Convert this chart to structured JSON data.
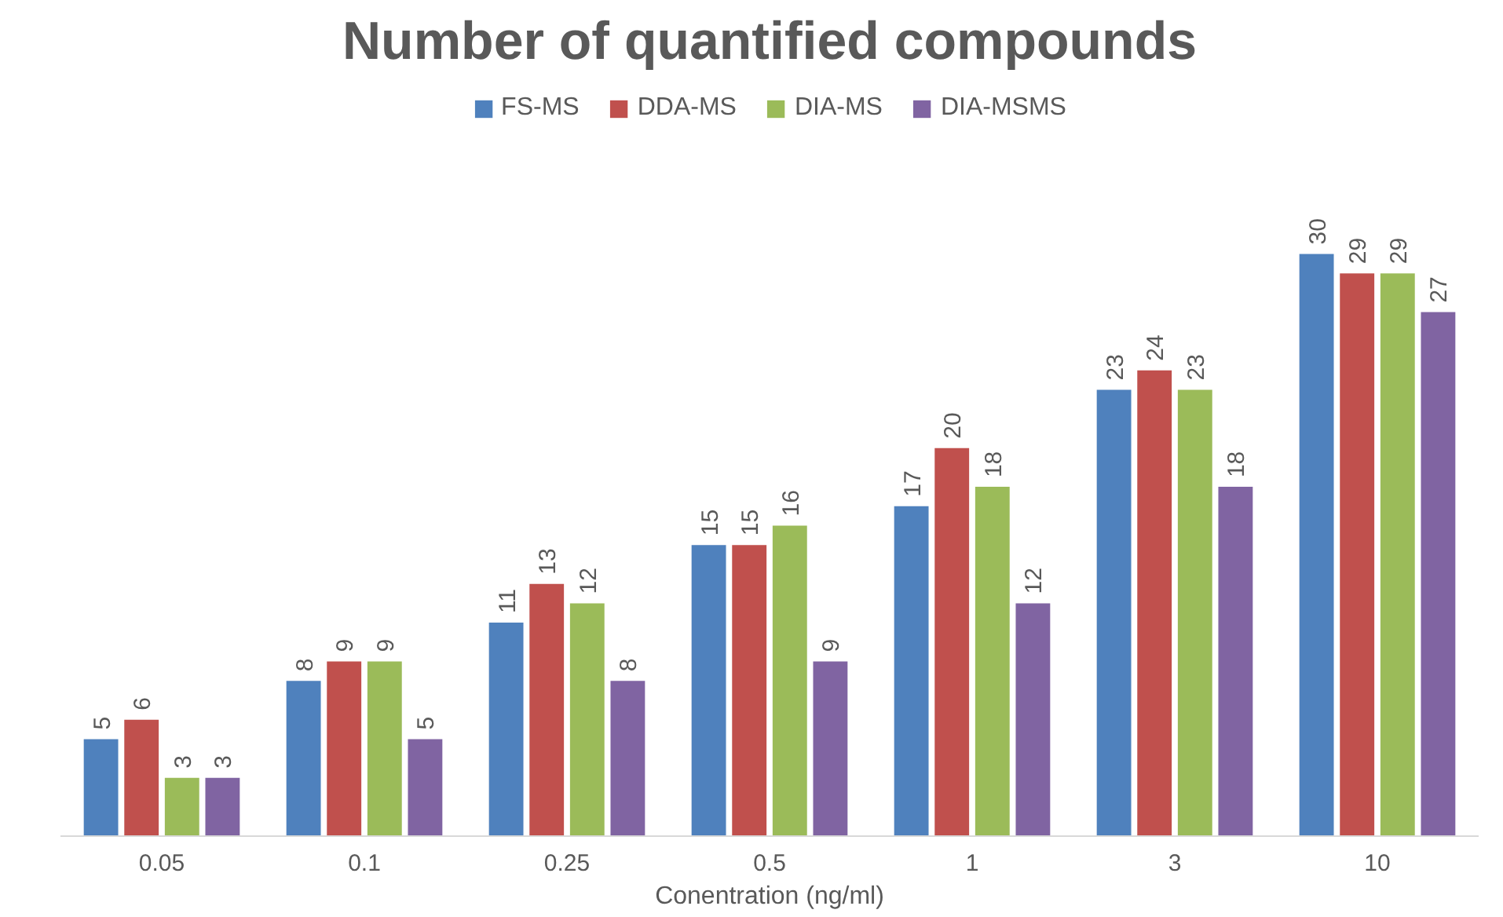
{
  "chart_data": {
    "type": "bar",
    "title": "Number of quantified compounds",
    "xlabel": "Conentration (ng/ml)",
    "categories": [
      "0.05",
      "0.1",
      "0.25",
      "0.5",
      "1",
      "3",
      "10"
    ],
    "series": [
      {
        "name": "FS-MS",
        "color": "#4f81bd",
        "values": [
          5,
          8,
          11,
          15,
          17,
          23,
          30
        ]
      },
      {
        "name": "DDA-MS",
        "color": "#c0504d",
        "values": [
          6,
          9,
          13,
          15,
          20,
          24,
          29
        ]
      },
      {
        "name": "DIA-MS",
        "color": "#9bbb59",
        "values": [
          3,
          9,
          12,
          16,
          18,
          23,
          29
        ]
      },
      {
        "name": "DIA-MSMS",
        "color": "#8064a2",
        "values": [
          3,
          5,
          8,
          9,
          12,
          18,
          27
        ]
      }
    ],
    "data_labels": true,
    "grid": false,
    "legend": "top"
  }
}
